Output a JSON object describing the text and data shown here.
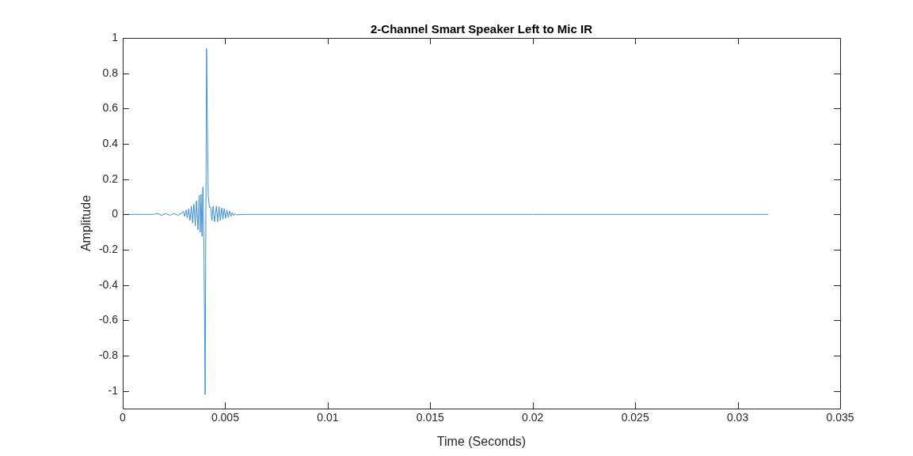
{
  "chart_data": {
    "type": "line",
    "title": "2-Channel Smart Speaker Left to Mic IR",
    "xlabel": "Time (Seconds)",
    "ylabel": "Amplitude",
    "x": [
      0,
      0.0015,
      0.0017,
      0.0019,
      0.0021,
      0.0023,
      0.0025,
      0.0027,
      0.0029,
      0.00296,
      0.00302,
      0.00309,
      0.00315,
      0.00322,
      0.00328,
      0.00335,
      0.00341,
      0.00347,
      0.00354,
      0.0036,
      0.00367,
      0.00373,
      0.00378,
      0.00382,
      0.00387,
      0.00391,
      0.00396,
      0.00402,
      0.00409,
      0.00417,
      0.00423,
      0.00429,
      0.00435,
      0.00441,
      0.00448,
      0.00457,
      0.00463,
      0.0047,
      0.00476,
      0.00483,
      0.00489,
      0.00495,
      0.00502,
      0.00508,
      0.00515,
      0.00521,
      0.00528,
      0.00534,
      0.00541,
      0.00547,
      0.00554,
      0.006,
      0.01,
      0.02,
      0.0315
    ],
    "series": [
      {
        "color": "#3d8fd6",
        "values": [
          0,
          0,
          0.005,
          -0.005,
          0.005,
          -0.005,
          0.005,
          -0.005,
          0.01,
          0.018,
          -0.012,
          0.025,
          -0.02,
          0.033,
          -0.034,
          0.047,
          -0.049,
          0.058,
          -0.064,
          0.077,
          -0.087,
          0.107,
          -0.101,
          0.114,
          -0.124,
          0.156,
          -0.168,
          -1.02,
          0.94,
          0.107,
          0.04,
          0.04,
          -0.034,
          0.047,
          -0.041,
          0.047,
          -0.041,
          0.044,
          -0.034,
          0.036,
          -0.027,
          0.033,
          -0.022,
          0.025,
          -0.016,
          0.019,
          -0.012,
          0.01,
          -0.006,
          0.004,
          -0.002,
          0,
          0,
          0,
          0
        ]
      }
    ],
    "xlim": [
      0,
      0.035
    ],
    "xticks": [
      0,
      0.005,
      0.01,
      0.015,
      0.02,
      0.025,
      0.03,
      0.035
    ],
    "ylim": [
      -1.1,
      1
    ],
    "yticks": [
      -1,
      -0.8,
      -0.6,
      -0.4,
      -0.2,
      0,
      0.2,
      0.4,
      0.6,
      0.8,
      1
    ],
    "grid": false,
    "legend": false,
    "marker": "none",
    "line_style": "solid"
  }
}
